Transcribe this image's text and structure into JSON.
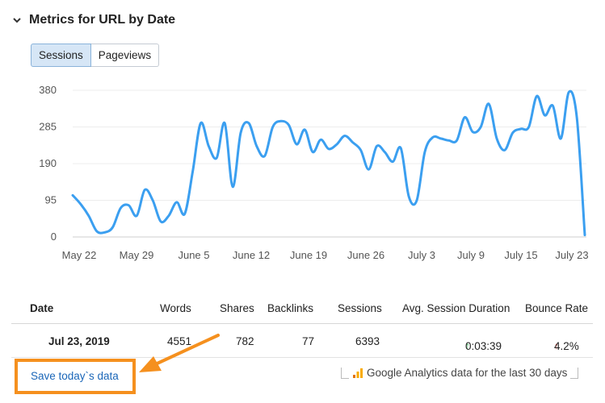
{
  "section": {
    "title": "Metrics for URL by Date"
  },
  "toggle": {
    "sessions_label": "Sessions",
    "pageviews_label": "Pageviews"
  },
  "chart_data": {
    "type": "line",
    "title": "",
    "xlabel": "",
    "ylabel": "",
    "y_ticks": [
      "380",
      "285",
      "190",
      "95",
      "0"
    ],
    "x_ticks": [
      "May 22",
      "May 29",
      "June 5",
      "June 12",
      "June 19",
      "June 26",
      "July 3",
      "July 9",
      "July 15",
      "July 23"
    ],
    "ylim": [
      0,
      380
    ],
    "grid": "horizontal",
    "series": [
      {
        "color": "#3b9ff0",
        "values": [
          108,
          85,
          55,
          15,
          12,
          25,
          75,
          82,
          55,
          122,
          95,
          40,
          55,
          90,
          60,
          170,
          295,
          235,
          205,
          295,
          130,
          270,
          295,
          235,
          210,
          285,
          300,
          290,
          240,
          278,
          220,
          252,
          228,
          240,
          262,
          245,
          225,
          175,
          235,
          220,
          195,
          230,
          105,
          95,
          220,
          258,
          255,
          250,
          250,
          310,
          272,
          285,
          345,
          255,
          225,
          270,
          280,
          285,
          365,
          315,
          340,
          255,
          375,
          310,
          5
        ]
      }
    ],
    "line_color": "#3b9ff0"
  },
  "table": {
    "headers": {
      "date": "Date",
      "words": "Words",
      "shares": "Shares",
      "backlinks": "Backlinks",
      "sessions": "Sessions",
      "avg_duration": "Avg. Session Duration",
      "bounce": "Bounce Rate"
    },
    "row": {
      "date": "Jul 23, 2019",
      "words": "4551",
      "shares": "782",
      "backlinks": "77",
      "sessions": "6393",
      "avg_duration": "0:03:39",
      "bounce": "4.2%"
    }
  },
  "footer": {
    "save_label": "Save today`s data",
    "ga_note": "Google Analytics data for the last 30 days"
  },
  "colors": {
    "accent": "#1a66b8",
    "highlight": "#f5901e",
    "line": "#3b9ff0"
  }
}
